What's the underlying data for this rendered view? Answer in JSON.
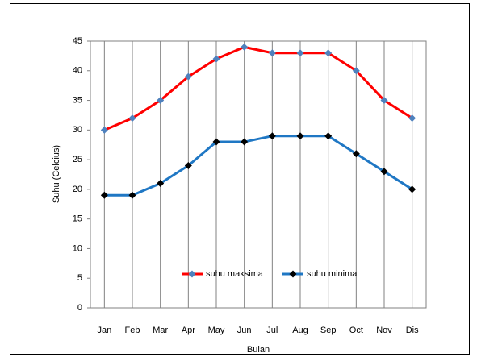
{
  "chart_data": {
    "type": "line",
    "categories": [
      "Jan",
      "Feb",
      "Mar",
      "Apr",
      "May",
      "Jun",
      "Jul",
      "Aug",
      "Sep",
      "Oct",
      "Nov",
      "Dis"
    ],
    "series": [
      {
        "name": "suhu maksima",
        "color": "#ff0000",
        "marker_color": "#4f81bd",
        "values": [
          30,
          32,
          35,
          39,
          42,
          44,
          43,
          43,
          43,
          40,
          35,
          32
        ]
      },
      {
        "name": "suhu minima",
        "color": "#1f77c4",
        "marker_color": "#000000",
        "values": [
          19,
          19,
          21,
          24,
          28,
          28,
          29,
          29,
          29,
          26,
          23,
          20
        ]
      }
    ],
    "xlabel": "Bulan",
    "ylabel": "Suhu (Celcius)",
    "ylim": [
      0,
      45
    ],
    "yticks": [
      0,
      5,
      10,
      15,
      20,
      25,
      30,
      35,
      40,
      45
    ],
    "grid": "x",
    "legend": "bottom-center"
  }
}
